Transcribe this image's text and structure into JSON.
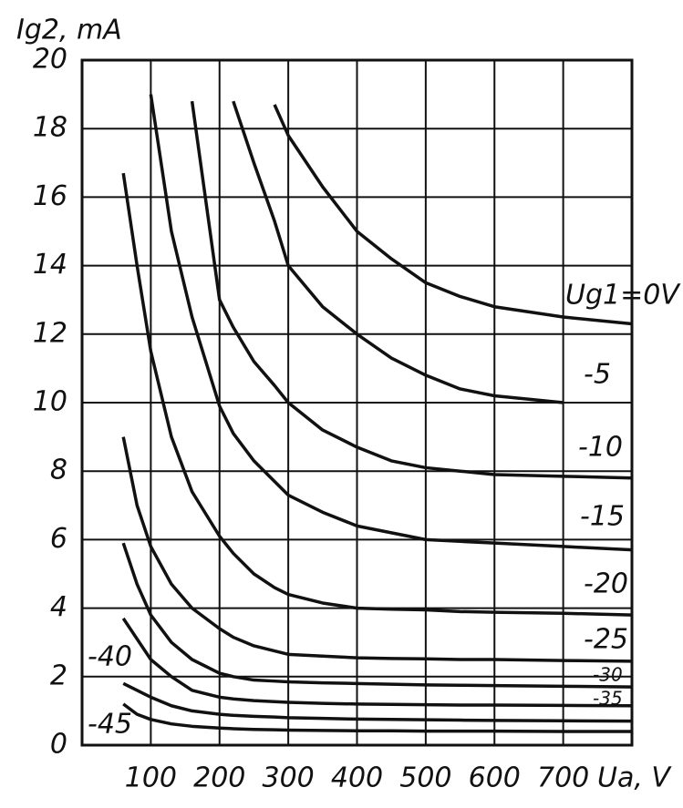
{
  "chart_data": {
    "type": "line",
    "y_label": "Ig2, mA",
    "x_label": "Ua, V",
    "x": [
      60,
      80,
      100,
      130,
      160,
      200,
      220,
      250,
      280,
      300,
      350,
      400,
      450,
      500,
      550,
      600,
      700,
      800
    ],
    "xlim": [
      0,
      800
    ],
    "xticks": [
      100,
      200,
      300,
      400,
      500,
      600,
      700
    ],
    "ylim": [
      0,
      20
    ],
    "yticks": [
      0,
      2,
      4,
      6,
      8,
      10,
      12,
      14,
      16,
      18,
      20
    ],
    "grid": true,
    "series": [
      {
        "name": "Ug1=0V",
        "color": "#111111",
        "values": [
          null,
          null,
          null,
          null,
          null,
          null,
          null,
          null,
          18.7,
          17.8,
          16.3,
          15.0,
          14.2,
          13.5,
          13.1,
          12.8,
          12.5,
          12.3
        ]
      },
      {
        "name": "-5",
        "color": "#111111",
        "values": [
          null,
          null,
          null,
          null,
          null,
          null,
          18.8,
          17.0,
          15.3,
          14.0,
          12.8,
          12.0,
          11.3,
          10.8,
          10.4,
          10.2,
          10.0,
          null
        ]
      },
      {
        "name": "-10",
        "color": "#111111",
        "values": [
          null,
          null,
          null,
          null,
          18.8,
          13.0,
          12.2,
          11.2,
          10.5,
          10.0,
          9.2,
          8.7,
          8.3,
          8.1,
          8.0,
          7.9,
          7.85,
          7.8
        ]
      },
      {
        "name": "-15",
        "color": "#111111",
        "values": [
          null,
          null,
          19.0,
          15.0,
          12.5,
          9.9,
          9.1,
          8.3,
          7.7,
          7.3,
          6.8,
          6.4,
          6.2,
          6.0,
          5.95,
          5.9,
          5.8,
          5.7
        ]
      },
      {
        "name": "-20",
        "color": "#111111",
        "values": [
          16.7,
          14.0,
          11.5,
          9.0,
          7.4,
          6.1,
          5.6,
          5.0,
          4.6,
          4.4,
          4.15,
          4.0,
          3.97,
          3.95,
          3.9,
          3.88,
          3.85,
          3.8
        ]
      },
      {
        "name": "-25",
        "color": "#111111",
        "values": [
          9.0,
          7.0,
          5.8,
          4.7,
          4.0,
          3.4,
          3.15,
          2.9,
          2.75,
          2.65,
          2.6,
          2.55,
          2.53,
          2.52,
          2.5,
          2.5,
          2.47,
          2.45
        ]
      },
      {
        "name": "-30",
        "color": "#111111",
        "values": [
          5.9,
          4.7,
          3.8,
          3.0,
          2.5,
          2.1,
          2.0,
          1.9,
          1.87,
          1.85,
          1.82,
          1.8,
          1.78,
          1.76,
          1.75,
          1.74,
          1.72,
          1.7
        ]
      },
      {
        "name": "-35",
        "color": "#111111",
        "values": [
          3.7,
          3.1,
          2.5,
          2.0,
          1.6,
          1.4,
          1.35,
          1.3,
          1.27,
          1.25,
          1.22,
          1.2,
          1.19,
          1.18,
          1.17,
          1.17,
          1.16,
          1.15
        ]
      },
      {
        "name": "-40",
        "color": "#111111",
        "values": [
          1.8,
          1.6,
          1.4,
          1.15,
          1.0,
          0.9,
          0.87,
          0.84,
          0.82,
          0.8,
          0.78,
          0.76,
          0.75,
          0.74,
          0.73,
          0.72,
          0.71,
          0.7
        ]
      },
      {
        "name": "-45",
        "color": "#111111",
        "values": [
          1.2,
          0.9,
          0.75,
          0.62,
          0.55,
          0.5,
          0.48,
          0.46,
          0.45,
          0.44,
          0.43,
          0.42,
          0.42,
          0.41,
          0.41,
          0.41,
          0.4,
          0.4
        ]
      }
    ]
  }
}
